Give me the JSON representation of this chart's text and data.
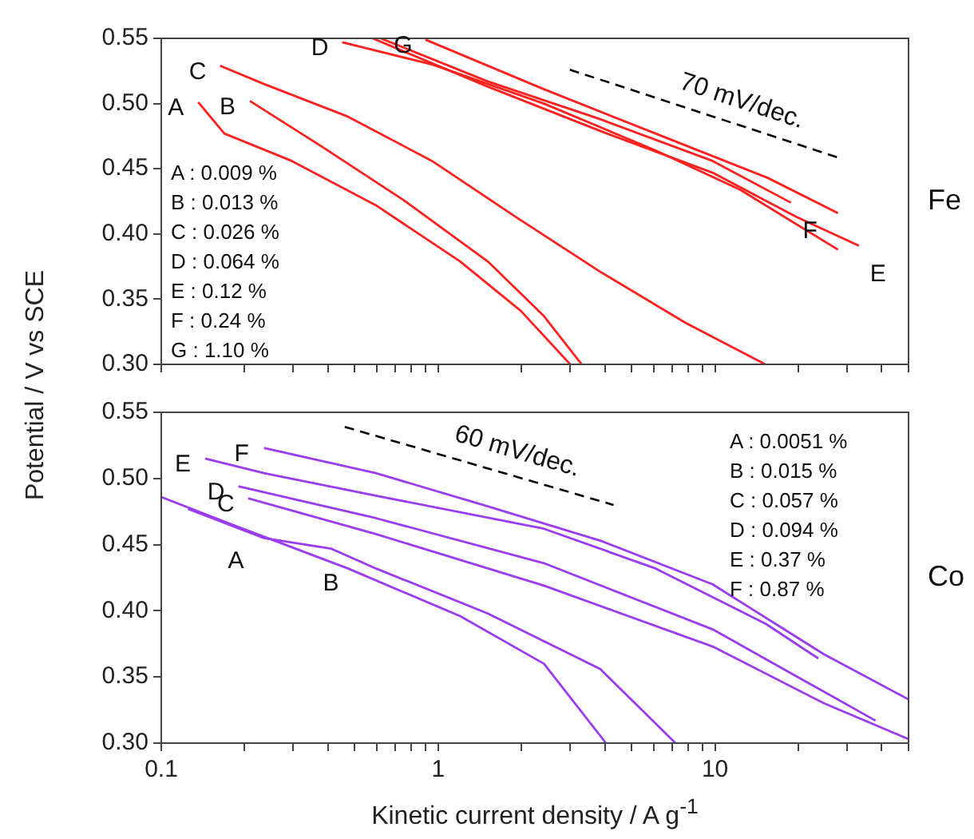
{
  "chart_data": [
    {
      "type": "line",
      "ylabel": "Potential / V vs SCE",
      "log": "x",
      "marker": "none",
      "line_style": "solid",
      "grid": false,
      "legend": false,
      "tick_labels": "y",
      "xlim": [
        0.1,
        50
      ],
      "xticks": [
        {
          "value": 0.1,
          "label": null
        },
        {
          "value": 0.2,
          "label": null
        },
        {
          "value": 0.3,
          "label": null
        },
        {
          "value": 0.4,
          "label": null
        },
        {
          "value": 0.5,
          "label": null
        },
        {
          "value": 0.6,
          "label": null
        },
        {
          "value": 0.7,
          "label": null
        },
        {
          "value": 0.8,
          "label": null
        },
        {
          "value": 0.9,
          "label": null
        },
        {
          "value": 1,
          "label": null
        },
        {
          "value": 2,
          "label": null
        },
        {
          "value": 3,
          "label": null
        },
        {
          "value": 4,
          "label": null
        },
        {
          "value": 5,
          "label": null
        },
        {
          "value": 6,
          "label": null
        },
        {
          "value": 7,
          "label": null
        },
        {
          "value": 8,
          "label": null
        },
        {
          "value": 9,
          "label": null
        },
        {
          "value": 10,
          "label": null
        },
        {
          "value": 20,
          "label": null
        },
        {
          "value": 30,
          "label": null
        },
        {
          "value": 40,
          "label": null
        },
        {
          "value": 50,
          "label": null
        }
      ],
      "ylim": [
        0.3,
        0.55
      ],
      "yticks": [
        {
          "value": 0.3,
          "label": "0.30"
        },
        {
          "value": 0.35,
          "label": "0.35"
        },
        {
          "value": 0.4,
          "label": "0.40"
        },
        {
          "value": 0.45,
          "label": "0.45"
        },
        {
          "value": 0.5,
          "label": "0.50"
        },
        {
          "value": 0.55,
          "label": "0.55"
        }
      ],
      "series": [
        {
          "color": "#ff2020",
          "x": [
            0.136,
            0.169,
            0.296,
            0.596,
            1.2,
            1.99,
            3.0
          ],
          "values": [
            0.501,
            0.477,
            0.456,
            0.422,
            0.379,
            0.341,
            0.3
          ]
        },
        {
          "color": "#ff2020",
          "x": [
            0.209,
            0.374,
            0.75,
            1.51,
            2.41,
            3.3
          ],
          "values": [
            0.502,
            0.468,
            0.426,
            0.379,
            0.337,
            0.3
          ]
        },
        {
          "color": "#ff2020",
          "x": [
            0.163,
            0.235,
            0.472,
            0.95,
            1.91,
            3.85,
            7.8,
            15.2
          ],
          "values": [
            0.529,
            0.515,
            0.49,
            0.456,
            0.413,
            0.371,
            0.332,
            0.3
          ]
        },
        {
          "color": "#ff2020",
          "x": [
            0.45,
            0.95,
            2.41,
            6.1,
            12.3,
            27.8
          ],
          "values": [
            0.547,
            0.53,
            0.5,
            0.464,
            0.434,
            0.388
          ]
        },
        {
          "color": "#ff2020",
          "x": [
            0.58,
            1.51,
            3.85,
            9.8,
            19.7,
            33.1
          ],
          "values": [
            0.55,
            0.513,
            0.479,
            0.447,
            0.413,
            0.391
          ]
        },
        {
          "color": "#ff2020",
          "x": [
            0.62,
            1.51,
            3.85,
            9.8,
            18.8
          ],
          "values": [
            0.55,
            0.517,
            0.488,
            0.456,
            0.424
          ]
        },
        {
          "color": "#ff2020",
          "x": [
            0.9,
            2.41,
            6.1,
            15.5,
            27.8
          ],
          "values": [
            0.549,
            0.511,
            0.477,
            0.443,
            0.416
          ]
        },
        {
          "type": "line",
          "color": "#000000",
          "line_style": "dashed",
          "x": [
            2.99,
            28.4
          ],
          "values": [
            0.526,
            0.458
          ]
        }
      ],
      "annotations": [
        {
          "text": "A",
          "x": 0.136,
          "y": 0.501
        },
        {
          "text": "B",
          "x": 0.209,
          "y": 0.502
        },
        {
          "text": "C",
          "x": 0.163,
          "y": 0.529
        },
        {
          "text": "D",
          "x": 0.45,
          "y": 0.547
        },
        {
          "text": "G",
          "x": 0.9,
          "y": 0.549
        },
        {
          "text": "F",
          "x": 18.8,
          "y": 0.424
        },
        {
          "text": "E",
          "x": 33.1,
          "y": 0.391
        },
        "70 mV/dec.",
        "A : 0.009 %",
        "B : 0.013 %",
        "C : 0.026 %",
        "D : 0.064 %",
        "E : 0.12 %",
        "F : 0.24 %",
        "G : 1.10 %",
        "Fe"
      ]
    },
    {
      "type": "line",
      "xlabel": "Kinetic current density / A g$^{-1}$",
      "log": "x",
      "marker": "none",
      "line_style": "solid",
      "grid": false,
      "legend": false,
      "xlim": [
        0.1,
        50
      ],
      "xticks": [
        0.1,
        {
          "value": 0.2,
          "label": null
        },
        {
          "value": 0.3,
          "label": null
        },
        {
          "value": 0.4,
          "label": null
        },
        {
          "value": 0.5,
          "label": null
        },
        {
          "value": 0.6,
          "label": null
        },
        {
          "value": 0.7,
          "label": null
        },
        {
          "value": 0.8,
          "label": null
        },
        {
          "value": 0.9,
          "label": null
        },
        1,
        {
          "value": 2,
          "label": null
        },
        {
          "value": 3,
          "label": null
        },
        {
          "value": 4,
          "label": null
        },
        {
          "value": 5,
          "label": null
        },
        {
          "value": 6,
          "label": null
        },
        {
          "value": 7,
          "label": null
        },
        {
          "value": 8,
          "label": null
        },
        {
          "value": 9,
          "label": null
        },
        10,
        {
          "value": 20,
          "label": null
        },
        {
          "value": 30,
          "label": null
        },
        {
          "value": 40,
          "label": null
        },
        {
          "value": 50,
          "label": null
        }
      ],
      "ylim": [
        0.3,
        0.55
      ],
      "yticks": [
        {
          "value": 0.3,
          "label": "0.30"
        },
        {
          "value": 0.35,
          "label": "0.35"
        },
        {
          "value": 0.4,
          "label": "0.40"
        },
        {
          "value": 0.45,
          "label": "0.45"
        },
        {
          "value": 0.5,
          "label": "0.50"
        },
        {
          "value": 0.55,
          "label": "0.55"
        }
      ],
      "series": [
        {
          "color": "#9a3cf0",
          "x": [
            0.1,
            0.186,
            0.472,
            1.2,
            2.41,
            4.04
          ],
          "values": [
            0.486,
            0.464,
            0.432,
            0.396,
            0.36,
            0.3
          ]
        },
        {
          "color": "#9a3cf0",
          "x": [
            0.125,
            0.235,
            0.41,
            0.596,
            1.51,
            3.85,
            7.2
          ],
          "values": [
            0.477,
            0.455,
            0.447,
            0.432,
            0.398,
            0.356,
            0.3
          ]
        },
        {
          "color": "#9a3cf0",
          "x": [
            0.206,
            0.596,
            2.41,
            9.8,
            24.8,
            50
          ],
          "values": [
            0.485,
            0.458,
            0.419,
            0.373,
            0.33,
            0.303
          ]
        },
        {
          "color": "#9a3cf0",
          "x": [
            0.19,
            0.596,
            2.41,
            9.8,
            38.0
          ],
          "values": [
            0.494,
            0.47,
            0.436,
            0.386,
            0.317
          ]
        },
        {
          "color": "#9a3cf0",
          "x": [
            0.144,
            0.235,
            0.596,
            2.41,
            6.1,
            15.3,
            23.6
          ],
          "values": [
            0.515,
            0.504,
            0.487,
            0.462,
            0.432,
            0.39,
            0.364
          ]
        },
        {
          "color": "#9a3cf0",
          "x": [
            0.235,
            0.596,
            1.51,
            3.85,
            9.8,
            24.8,
            50
          ],
          "values": [
            0.523,
            0.504,
            0.479,
            0.453,
            0.42,
            0.367,
            0.333
          ]
        },
        {
          "type": "line",
          "color": "#000000",
          "line_style": "dashed",
          "x": [
            0.46,
            4.3
          ],
          "values": [
            0.539,
            0.48
          ]
        }
      ],
      "annotations": [
        {
          "text": "E",
          "x": 0.144,
          "y": 0.515
        },
        {
          "text": "F",
          "x": 0.235,
          "y": 0.523
        },
        {
          "text": "D",
          "x": 0.19,
          "y": 0.494
        },
        {
          "text": "C",
          "x": 0.206,
          "y": 0.485
        },
        {
          "text": "B",
          "x": 0.41,
          "y": 0.447
        },
        {
          "text": "A",
          "x": 0.186,
          "y": 0.464
        },
        "60 mV/dec.",
        "A : 0.0051 %",
        "B : 0.015 %",
        "C : 0.057 %",
        "D : 0.094 %",
        "E : 0.37 %",
        "F : 0.87 %",
        "Co"
      ]
    }
  ]
}
